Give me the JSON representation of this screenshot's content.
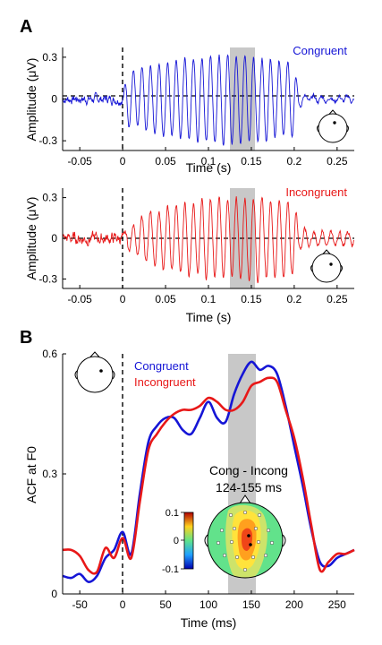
{
  "panels": [
    {
      "label": "A"
    },
    {
      "label": "B"
    }
  ],
  "chart_data": [
    {
      "type": "line",
      "panel": "A",
      "condition_label": "Congruent",
      "color": "#1515d6",
      "xlabel": "Time (s)",
      "ylabel": "Amplitude (μV)",
      "xlim": [
        -0.07,
        0.27
      ],
      "ylim": [
        -0.37,
        0.37
      ],
      "x_ticks": [
        "-0.05",
        "0",
        "0.05",
        "0.1",
        "0.15",
        "0.2",
        "0.25"
      ],
      "y_ticks": [
        "-0.3",
        "0",
        "0.3"
      ],
      "shaded_window_s": [
        0.124,
        0.155
      ],
      "onset_line_x": 0,
      "zero_line": true,
      "waveform": {
        "frequency_hz": 100,
        "pre_noise_amplitude": 0.03,
        "envelope": [
          [
            0.0,
            0.0
          ],
          [
            0.005,
            0.18
          ],
          [
            0.04,
            0.26
          ],
          [
            0.08,
            0.3
          ],
          [
            0.13,
            0.32
          ],
          [
            0.16,
            0.3
          ],
          [
            0.2,
            0.25
          ],
          [
            0.205,
            0.08
          ],
          [
            0.215,
            0.02
          ],
          [
            0.27,
            0.02
          ]
        ]
      },
      "inset": "scalp-head-with-electrode"
    },
    {
      "type": "line",
      "panel": "A",
      "condition_label": "Incongruent",
      "color": "#e81818",
      "xlabel": "Time (s)",
      "ylabel": "Amplitude (μV)",
      "xlim": [
        -0.07,
        0.27
      ],
      "ylim": [
        -0.37,
        0.37
      ],
      "x_ticks": [
        "-0.05",
        "0",
        "0.05",
        "0.1",
        "0.15",
        "0.2",
        "0.25"
      ],
      "y_ticks": [
        "-0.3",
        "0",
        "0.3"
      ],
      "shaded_window_s": [
        0.124,
        0.155
      ],
      "onset_line_x": 0,
      "zero_line": true,
      "waveform": {
        "frequency_hz": 100,
        "pre_noise_amplitude": 0.04,
        "envelope": [
          [
            0.0,
            0.0
          ],
          [
            0.008,
            0.1
          ],
          [
            0.03,
            0.18
          ],
          [
            0.07,
            0.26
          ],
          [
            0.12,
            0.3
          ],
          [
            0.16,
            0.3
          ],
          [
            0.2,
            0.26
          ],
          [
            0.206,
            0.08
          ],
          [
            0.22,
            0.04
          ],
          [
            0.27,
            0.05
          ]
        ]
      },
      "inset": "scalp-head-with-electrode"
    },
    {
      "type": "line",
      "panel": "B",
      "xlabel": "Time (ms)",
      "ylabel": "ACF at F0",
      "xlim": [
        -70,
        270
      ],
      "ylim": [
        0,
        0.6
      ],
      "x_ticks": [
        "-50",
        "0",
        "50",
        "100",
        "150",
        "200",
        "250"
      ],
      "y_ticks": [
        "0",
        "0.3",
        "0.6"
      ],
      "shaded_window_ms": [
        124,
        155
      ],
      "onset_line_x": 0,
      "series": [
        {
          "name": "Congruent",
          "color": "#1515d6",
          "x": [
            -70,
            -60,
            -50,
            -40,
            -30,
            -20,
            -10,
            0,
            10,
            20,
            30,
            40,
            50,
            60,
            70,
            80,
            90,
            100,
            110,
            120,
            130,
            140,
            150,
            160,
            170,
            180,
            190,
            200,
            210,
            220,
            230,
            240,
            250,
            260,
            270
          ],
          "y": [
            0.045,
            0.04,
            0.05,
            0.03,
            0.045,
            0.09,
            0.11,
            0.155,
            0.1,
            0.25,
            0.38,
            0.42,
            0.44,
            0.44,
            0.41,
            0.4,
            0.44,
            0.48,
            0.44,
            0.43,
            0.5,
            0.55,
            0.58,
            0.56,
            0.57,
            0.55,
            0.47,
            0.37,
            0.27,
            0.16,
            0.08,
            0.07,
            0.09,
            0.1,
            0.11
          ]
        },
        {
          "name": "Incongruent",
          "color": "#e81818",
          "x": [
            -70,
            -60,
            -50,
            -40,
            -30,
            -20,
            -10,
            0,
            10,
            20,
            30,
            40,
            50,
            60,
            70,
            80,
            90,
            100,
            110,
            120,
            130,
            140,
            150,
            160,
            170,
            180,
            190,
            200,
            210,
            220,
            230,
            240,
            250,
            260,
            270
          ],
          "y": [
            0.11,
            0.11,
            0.095,
            0.06,
            0.055,
            0.115,
            0.09,
            0.14,
            0.09,
            0.23,
            0.36,
            0.4,
            0.43,
            0.45,
            0.46,
            0.46,
            0.47,
            0.49,
            0.48,
            0.46,
            0.46,
            0.48,
            0.52,
            0.53,
            0.54,
            0.53,
            0.46,
            0.39,
            0.29,
            0.17,
            0.06,
            0.08,
            0.1,
            0.1,
            0.11
          ]
        }
      ],
      "inset_head": "scalp-head-with-electrode",
      "topomap": {
        "title_line1": "Cong - Incong",
        "title_line2": "124-155 ms",
        "colorbar_ticks": [
          "0.1",
          "0",
          "-0.1"
        ],
        "colorbar_range": [
          -0.1,
          0.1
        ]
      }
    }
  ]
}
